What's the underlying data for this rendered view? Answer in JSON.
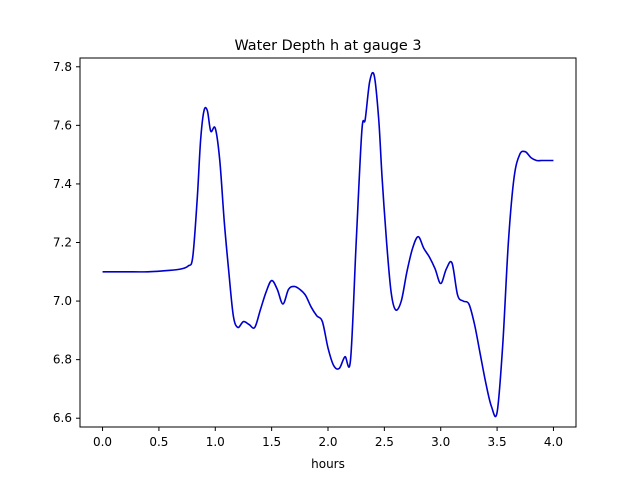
{
  "chart_data": {
    "type": "line",
    "title": "Water Depth h at gauge 3",
    "xlabel": "hours",
    "ylabel": "",
    "xlim": [
      -0.2,
      4.2
    ],
    "ylim": [
      6.57,
      7.83
    ],
    "xticks": [
      0.0,
      0.5,
      1.0,
      1.5,
      2.0,
      2.5,
      3.0,
      3.5,
      4.0
    ],
    "xtick_labels": [
      "0.0",
      "0.5",
      "1.0",
      "1.5",
      "2.0",
      "2.5",
      "3.0",
      "3.5",
      "4.0"
    ],
    "yticks": [
      6.6,
      6.8,
      7.0,
      7.2,
      7.4,
      7.6,
      7.8
    ],
    "ytick_labels": [
      "6.6",
      "6.8",
      "7.0",
      "7.2",
      "7.4",
      "7.6",
      "7.8"
    ],
    "grid": false,
    "series": [
      {
        "color": "#0000cc",
        "x": [
          0.0,
          0.2,
          0.4,
          0.6,
          0.7,
          0.76,
          0.8,
          0.84,
          0.87,
          0.9,
          0.93,
          0.96,
          1.0,
          1.04,
          1.08,
          1.12,
          1.16,
          1.2,
          1.25,
          1.3,
          1.35,
          1.4,
          1.45,
          1.5,
          1.55,
          1.6,
          1.65,
          1.7,
          1.75,
          1.8,
          1.85,
          1.9,
          1.95,
          2.0,
          2.05,
          2.1,
          2.15,
          2.2,
          2.25,
          2.3,
          2.33,
          2.37,
          2.41,
          2.45,
          2.48,
          2.52,
          2.56,
          2.6,
          2.65,
          2.7,
          2.75,
          2.8,
          2.85,
          2.9,
          2.95,
          3.0,
          3.05,
          3.1,
          3.15,
          3.2,
          3.25,
          3.3,
          3.35,
          3.4,
          3.45,
          3.5,
          3.55,
          3.6,
          3.65,
          3.7,
          3.75,
          3.8,
          3.85,
          3.9,
          3.95,
          4.0
        ],
        "y": [
          7.1,
          7.1,
          7.1,
          7.105,
          7.11,
          7.12,
          7.15,
          7.35,
          7.55,
          7.65,
          7.65,
          7.58,
          7.59,
          7.48,
          7.27,
          7.1,
          6.95,
          6.91,
          6.93,
          6.92,
          6.91,
          6.97,
          7.03,
          7.07,
          7.04,
          6.99,
          7.04,
          7.05,
          7.04,
          7.02,
          6.98,
          6.95,
          6.93,
          6.84,
          6.78,
          6.77,
          6.81,
          6.8,
          7.2,
          7.58,
          7.62,
          7.75,
          7.77,
          7.62,
          7.42,
          7.2,
          7.03,
          6.97,
          7.0,
          7.1,
          7.18,
          7.22,
          7.18,
          7.15,
          7.11,
          7.06,
          7.11,
          7.13,
          7.02,
          7.0,
          6.99,
          6.92,
          6.82,
          6.72,
          6.64,
          6.62,
          6.85,
          7.2,
          7.42,
          7.5,
          7.51,
          7.49,
          7.48,
          7.48,
          7.48,
          7.48
        ]
      }
    ]
  }
}
